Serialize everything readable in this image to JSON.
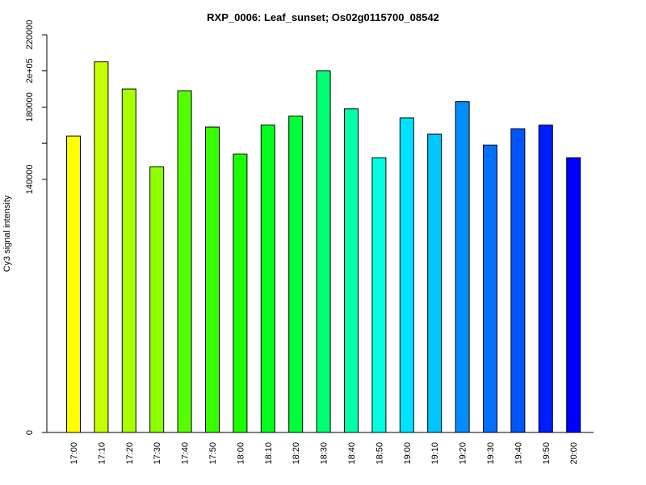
{
  "chart_data": {
    "type": "bar",
    "title": "RXP_0006: Leaf_sunset; Os02g0115700_08542",
    "xlabel": "",
    "ylabel": "Cy3 signal intensity",
    "categories": [
      "17:00",
      "17:10",
      "17:20",
      "17:30",
      "17:40",
      "17:50",
      "18:00",
      "18:10",
      "18:20",
      "18:30",
      "18:40",
      "18:50",
      "19:00",
      "19:10",
      "19:20",
      "19:30",
      "19:40",
      "19:50",
      "20:00"
    ],
    "values": [
      164000,
      205000,
      190000,
      147000,
      189000,
      169000,
      154000,
      170000,
      175000,
      200000,
      179000,
      152000,
      174000,
      165000,
      183000,
      159000,
      168000,
      170000,
      152000
    ],
    "colors": [
      "#ffff00",
      "#c6ff00",
      "#aaff00",
      "#8dff00",
      "#55ff00",
      "#38ff00",
      "#1cff00",
      "#00ff1c",
      "#00ff38",
      "#00ff71",
      "#00ffaa",
      "#00ffe2",
      "#00e2ff",
      "#00c6ff",
      "#008dff",
      "#0071ff",
      "#0055ff",
      "#001cff",
      "#0000ff"
    ],
    "ylim": [
      0,
      220000
    ],
    "yticks": [
      {
        "value": 0,
        "label": "0"
      },
      {
        "value": 140000,
        "label": "140000"
      },
      {
        "value": 180000,
        "label": "180000"
      },
      {
        "value": 200000,
        "label": "2e+05"
      },
      {
        "value": 220000,
        "label": "220000"
      }
    ],
    "minor_yticks": [
      160000
    ],
    "grid": false,
    "legend": "none"
  }
}
